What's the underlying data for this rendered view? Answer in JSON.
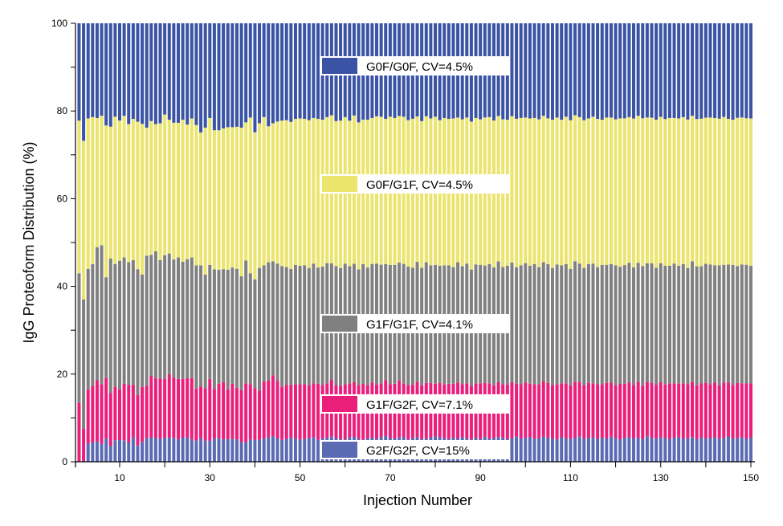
{
  "chart_data": {
    "type": "bar",
    "stacked": true,
    "title": "",
    "xlabel": "Injection Number",
    "ylabel": "IgG Proteoform Distribution (%)",
    "xlim": [
      1,
      150
    ],
    "ylim": [
      0,
      100
    ],
    "xticks": [
      10,
      30,
      50,
      70,
      90,
      110,
      130,
      150
    ],
    "yticks": [
      0,
      20,
      40,
      60,
      80,
      100
    ],
    "grid": false,
    "legend_placement": "inside, stacked at each series band",
    "series": [
      {
        "name": "G2F/G2F",
        "legend": "G2F/G2F, CV=15%",
        "color": "#5b6bb3",
        "values": [
          0,
          0,
          4.2,
          4.4,
          4.6,
          4.1,
          5.3,
          3.7,
          4.9,
          5.0,
          4.9,
          4.4,
          5.6,
          3.8,
          4.6,
          5.4,
          5.5,
          5.5,
          5.2,
          5.5,
          5.5,
          5.5,
          5.1,
          5.5,
          5.6,
          5.1,
          4.8,
          5.4,
          4.8,
          4.8,
          5.4,
          5.3,
          5.1,
          5.2,
          5.2,
          5.1,
          4.5,
          4.5,
          5.1,
          5.0,
          5.0,
          5.3,
          5.6,
          5.8,
          5.4,
          5.0,
          5.2,
          5.5,
          5.3,
          5.0,
          5.2,
          5.4,
          5.6,
          5.0,
          5.3,
          5.5,
          5.8,
          5.4,
          5.2,
          5.1,
          5.6,
          5.7,
          5.3,
          5.0,
          5.4,
          5.5,
          5.2,
          5.6,
          5.9,
          5.4,
          5.3,
          5.5,
          5.7,
          5.1,
          5.4,
          5.6,
          5.2,
          5.3,
          5.5,
          5.8,
          5.6,
          5.4,
          5.2,
          5.5,
          5.3,
          5.6,
          5.4,
          5.1,
          5.5,
          5.2,
          5.7,
          5.3,
          5.4,
          5.6,
          5.5,
          5.2,
          5.4,
          5.8,
          5.3,
          5.5,
          5.6,
          5.2,
          5.4,
          5.7,
          5.5,
          5.3,
          5.1,
          5.6,
          5.4,
          5.2,
          5.5,
          5.8,
          5.3,
          5.4,
          5.6,
          5.2,
          5.5,
          5.3,
          5.7,
          5.4,
          5.1,
          5.5,
          5.6,
          5.3,
          5.4,
          5.2,
          5.8,
          5.5,
          5.3,
          5.6,
          5.4,
          5.2,
          5.5,
          5.7,
          5.3,
          5.4,
          5.6,
          5.1,
          5.5,
          5.3,
          5.4,
          5.6,
          5.2,
          5.5,
          5.8,
          5.3,
          5.4,
          5.6,
          5.2,
          5.5
        ]
      },
      {
        "name": "G1F/G2F",
        "legend": "G1F/G2F, CV=7.1%",
        "color": "#ea1e7b",
        "values": [
          13.5,
          7.5,
          12.3,
          12.9,
          14.0,
          13.6,
          13.8,
          12.5,
          12.2,
          11.7,
          12.9,
          13.2,
          11.9,
          11.7,
          12.6,
          11.9,
          14.1,
          13.6,
          13.8,
          13.4,
          14.5,
          13.9,
          13.8,
          13.4,
          13.5,
          14.0,
          11.9,
          11.8,
          12.0,
          14.1,
          11.2,
          12.5,
          13.0,
          11.3,
          12.6,
          11.8,
          11.8,
          13.4,
          12.6,
          12.0,
          11.2,
          13.0,
          12.9,
          13.9,
          13.0,
          12.1,
          12.3,
          12.1,
          12.4,
          12.7,
          12.5,
          12.0,
          12.3,
          12.8,
          12.2,
          12.4,
          12.9,
          12.0,
          12.1,
          12.6,
          12.3,
          12.5,
          12.2,
          12.8,
          12.0,
          12.6,
          12.4,
          12.1,
          12.7,
          12.3,
          12.5,
          12.9,
          12.2,
          12.4,
          12.1,
          12.6,
          12.3,
          12.7,
          12.5,
          12.0,
          12.4,
          12.2,
          12.6,
          12.3,
          12.8,
          12.1,
          12.5,
          12.2,
          12.4,
          12.7,
          12.3,
          12.6,
          12.1,
          12.5,
          12.2,
          12.4,
          12.8,
          12.0,
          12.3,
          12.6,
          12.2,
          12.5,
          12.3,
          12.7,
          12.4,
          12.1,
          12.6,
          12.3,
          12.5,
          12.2,
          12.8,
          12.4,
          12.1,
          12.6,
          12.3,
          12.5,
          12.2,
          12.7,
          12.4,
          12.0,
          12.6,
          12.3,
          12.5,
          12.2,
          12.8,
          12.1,
          12.4,
          12.6,
          12.3,
          12.5,
          12.2,
          12.7,
          12.4,
          12.1,
          12.6,
          12.3,
          12.5,
          12.2,
          12.4,
          12.7,
          12.3,
          12.5,
          12.1,
          12.6,
          12.4,
          12.2,
          12.5,
          12.3,
          12.6,
          12.4
        ]
      },
      {
        "name": "G1F/G1F",
        "legend": "G1F/G1F, CV=4.1%",
        "color": "#808080",
        "values": [
          29.5,
          29.5,
          27.5,
          27.8,
          30.3,
          31.7,
          23.0,
          31.8,
          28.0,
          29.6,
          28.8,
          27.9,
          28.5,
          29.3,
          25.8,
          29.7,
          27.6,
          28.9,
          27.0,
          28.2,
          27.5,
          27.2,
          27.7,
          26.7,
          27.1,
          27.5,
          28.1,
          27.6,
          25.9,
          26.0,
          27.3,
          26.0,
          25.7,
          27.3,
          26.5,
          27.1,
          26.0,
          28.0,
          25.3,
          25.0,
          28.0,
          26.5,
          27.0,
          26.0,
          26.8,
          27.5,
          26.9,
          26.4,
          27.2,
          27.0,
          27.1,
          26.8,
          27.3,
          26.5,
          27.0,
          27.4,
          26.6,
          27.2,
          26.9,
          27.5,
          26.7,
          27.1,
          26.4,
          27.3,
          26.9,
          27.0,
          27.6,
          26.8,
          26.5,
          27.2,
          27.1,
          26.7,
          27.4,
          27.0,
          26.6,
          27.3,
          26.9,
          27.5,
          26.8,
          27.1,
          26.7,
          27.2,
          27.0,
          26.6,
          27.4,
          26.9,
          27.3,
          26.5,
          27.1,
          27.0,
          26.8,
          27.2,
          26.9,
          27.5,
          26.7,
          27.1,
          27.3,
          26.6,
          27.0,
          27.2,
          26.9,
          27.4,
          26.7,
          27.1,
          27.0,
          26.8,
          27.3,
          26.9,
          27.2,
          26.6,
          27.5,
          27.0,
          26.8,
          27.1,
          27.3,
          26.7,
          27.2,
          26.9,
          27.0,
          27.4,
          26.6,
          27.1,
          27.3,
          26.8,
          27.0,
          27.2,
          26.9,
          27.5,
          26.7,
          27.1,
          27.0,
          26.8,
          27.3,
          26.9,
          27.2,
          26.6,
          27.4,
          27.0,
          26.8,
          27.1,
          27.3,
          26.7,
          27.2,
          26.9,
          27.0,
          27.4,
          26.6,
          27.1,
          27.0,
          26.8
        ]
      },
      {
        "name": "G0F/G1F",
        "legend": "G0F/G1F, CV=4.5%",
        "color": "#ebe46d",
        "values": [
          34.8,
          36.2,
          34.3,
          33.5,
          29.5,
          29.5,
          34.6,
          31.1,
          33.6,
          32.3,
          32.3,
          31.5,
          32.2,
          34.3,
          34.6,
          29.2,
          30.5,
          29.0,
          31.2,
          32.1,
          30.5,
          31.5,
          30.7,
          32.4,
          30.7,
          31.7,
          32.0,
          30.3,
          33.5,
          33.5,
          31.7,
          31.8,
          32.0,
          32.5,
          32.0,
          32.4,
          33.9,
          31.5,
          35.5,
          33.9,
          33.0,
          33.8,
          31.0,
          31.5,
          32.4,
          33.2,
          33.5,
          33.5,
          33.3,
          33.6,
          33.4,
          33.7,
          33.2,
          33.9,
          33.5,
          33.3,
          33.8,
          33.1,
          33.6,
          33.4,
          33.2,
          33.9,
          33.5,
          33.0,
          33.7,
          33.3,
          33.6,
          33.4,
          33.1,
          33.8,
          33.5,
          33.2,
          33.7,
          33.4,
          33.9,
          33.1,
          33.6,
          33.3,
          33.5,
          33.8,
          33.2,
          33.6,
          33.4,
          33.9,
          33.0,
          33.5,
          33.3,
          33.7,
          33.4,
          33.2,
          33.8,
          33.5,
          33.6,
          33.1,
          33.7,
          33.3,
          33.4,
          33.9,
          33.5,
          33.2,
          33.6,
          33.3,
          33.7,
          33.4,
          33.1,
          33.8,
          33.5,
          33.2,
          33.6,
          33.9,
          33.3,
          33.4,
          33.7,
          33.2,
          33.5,
          33.8,
          33.1,
          33.6,
          33.4,
          33.3,
          33.7,
          33.5,
          33.2,
          33.9,
          33.4,
          33.6,
          33.1,
          33.5,
          33.8,
          33.3,
          33.4,
          33.7,
          33.2,
          33.6,
          33.5,
          33.9,
          33.0,
          33.4,
          33.7,
          33.3,
          33.5,
          33.6,
          33.2,
          33.8,
          33.4,
          33.1,
          33.7,
          33.5,
          33.3,
          33.6
        ]
      },
      {
        "name": "G0F/G0F",
        "legend": "G0F/G0F, CV=4.5%",
        "color": "#3a53a4",
        "values": [
          22.2,
          26.8,
          21.7,
          21.4,
          21.6,
          21.1,
          23.3,
          24.4,
          21.3,
          22.4,
          21.1,
          23.0,
          21.8,
          22.9,
          23.1,
          23.8,
          22.3,
          23.0,
          22.8,
          20.8,
          22.0,
          22.9,
          22.7,
          22.0,
          23.1,
          21.7,
          23.2,
          24.9,
          23.8,
          21.6,
          24.4,
          24.4,
          23.9,
          23.7,
          23.7,
          23.6,
          23.8,
          22.6,
          21.5,
          25.1,
          22.8,
          21.4,
          23.5,
          22.8,
          22.4,
          22.2,
          22.1,
          22.5,
          21.8,
          21.7,
          21.8,
          22.1,
          21.6,
          21.8,
          22.0,
          21.4,
          21.0,
          22.3,
          22.2,
          21.4,
          22.2,
          21.1,
          22.6,
          22.0,
          22.0,
          21.6,
          21.2,
          21.1,
          21.8,
          21.3,
          21.6,
          21.0,
          21.4,
          22.1,
          21.7,
          21.2,
          22.4,
          21.2,
          21.7,
          21.3,
          22.1,
          21.6,
          21.8,
          21.7,
          21.5,
          21.9,
          21.5,
          22.4,
          21.6,
          21.9,
          21.5,
          21.4,
          22.2,
          21.1,
          21.9,
          22.0,
          21.2,
          21.8,
          21.5,
          21.5,
          21.7,
          21.6,
          21.9,
          21.1,
          21.6,
          22.0,
          21.5,
          22.0,
          21.3,
          22.1,
          21.0,
          21.4,
          22.1,
          21.7,
          21.3,
          21.8,
          22.0,
          21.5,
          21.5,
          21.9,
          21.6,
          21.7,
          21.4,
          21.7,
          21.0,
          21.6,
          21.4,
          21.7,
          22.0,
          21.3,
          21.8,
          21.6,
          21.6,
          21.7,
          21.4,
          22.0,
          21.0,
          21.7,
          21.8,
          21.5,
          21.5,
          21.6,
          21.6,
          21.4,
          21.9,
          22.0,
          21.5,
          21.5,
          21.6,
          21.7
        ]
      }
    ]
  }
}
